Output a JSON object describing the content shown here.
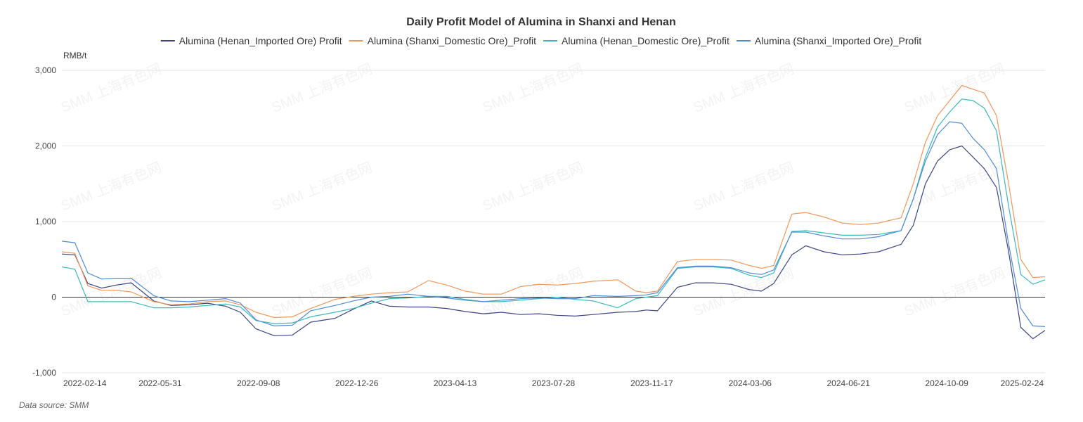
{
  "chart_data": {
    "type": "line",
    "title": "Daily Profit Model of Alumina in Shanxi and Henan",
    "ylabel": "RMB/t",
    "xlabel": "",
    "ylim": [
      -1000,
      3000
    ],
    "yticks": [
      -1000,
      0,
      1000,
      2000,
      3000
    ],
    "ytick_labels": [
      "-1,000",
      "0",
      "1,000",
      "2,000",
      "3,000"
    ],
    "x_tick_labels": [
      "2022-02-14",
      "2022-05-31",
      "2022-09-08",
      "2022-12-26",
      "2023-04-13",
      "2023-07-28",
      "2023-11-17",
      "2024-03-06",
      "2024-06-21",
      "2024-10-09",
      "2025-02-24"
    ],
    "grid": "horizontal",
    "legend_position": "top-center",
    "watermark": "SMM 上海有色网",
    "source": "Data source:  SMM",
    "x": [
      "2022-02-14",
      "2022-03-01",
      "2022-03-16",
      "2022-04-01",
      "2022-04-18",
      "2022-05-05",
      "2022-05-31",
      "2022-06-20",
      "2022-07-11",
      "2022-08-01",
      "2022-08-22",
      "2022-09-08",
      "2022-09-26",
      "2022-10-17",
      "2022-11-07",
      "2022-11-28",
      "2022-12-26",
      "2023-01-16",
      "2023-02-06",
      "2023-02-27",
      "2023-03-20",
      "2023-04-13",
      "2023-05-04",
      "2023-05-25",
      "2023-06-15",
      "2023-07-06",
      "2023-07-28",
      "2023-08-18",
      "2023-09-08",
      "2023-09-29",
      "2023-10-20",
      "2023-11-17",
      "2023-12-08",
      "2023-12-20",
      "2024-01-02",
      "2024-01-25",
      "2024-02-15",
      "2024-03-06",
      "2024-03-27",
      "2024-04-17",
      "2024-05-01",
      "2024-05-15",
      "2024-06-05",
      "2024-06-21",
      "2024-07-12",
      "2024-08-02",
      "2024-08-23",
      "2024-09-13",
      "2024-10-09",
      "2024-10-23",
      "2024-11-06",
      "2024-11-20",
      "2024-12-04",
      "2024-12-18",
      "2024-12-31",
      "2025-01-13",
      "2025-01-27",
      "2025-02-10",
      "2025-02-24",
      "2025-03-10",
      "2025-03-24"
    ],
    "series": [
      {
        "name": "Alumina (Henan_Imported Ore) Profit",
        "color": "#3d4585",
        "values": [
          570,
          560,
          180,
          120,
          160,
          190,
          -50,
          -110,
          -100,
          -80,
          -120,
          -200,
          -420,
          -510,
          -500,
          -330,
          -280,
          -160,
          -50,
          -120,
          -130,
          -130,
          -150,
          -190,
          -220,
          -200,
          -230,
          -220,
          -240,
          -250,
          -230,
          -200,
          -190,
          -170,
          -180,
          130,
          190,
          190,
          170,
          100,
          80,
          180,
          560,
          680,
          600,
          560,
          570,
          600,
          700,
          950,
          1500,
          1800,
          1950,
          2000,
          1850,
          1700,
          1450,
          600,
          -400,
          -550,
          -440
        ]
      },
      {
        "name": "Alumina (Shanxi_Domestic Ore)_Profit",
        "color": "#f0975a",
        "values": [
          600,
          580,
          150,
          90,
          90,
          70,
          -60,
          -100,
          -90,
          -60,
          -50,
          -100,
          -200,
          -270,
          -260,
          -150,
          -30,
          10,
          40,
          60,
          70,
          220,
          160,
          80,
          40,
          40,
          140,
          170,
          160,
          180,
          210,
          230,
          80,
          60,
          80,
          470,
          500,
          500,
          490,
          420,
          380,
          420,
          1100,
          1120,
          1060,
          980,
          960,
          980,
          1050,
          1500,
          2050,
          2400,
          2600,
          2800,
          2750,
          2700,
          2400,
          1500,
          500,
          260,
          270
        ]
      },
      {
        "name": "Alumina (Henan_Domestic Ore)_Profit",
        "color": "#3cb8bc",
        "values": [
          400,
          370,
          -60,
          -60,
          -60,
          -60,
          -140,
          -140,
          -130,
          -110,
          -90,
          -130,
          -310,
          -350,
          -340,
          -260,
          -200,
          -150,
          -80,
          -20,
          -10,
          10,
          10,
          -30,
          -60,
          -60,
          -40,
          -20,
          0,
          -30,
          -50,
          -140,
          -20,
          0,
          20,
          380,
          400,
          400,
          380,
          290,
          260,
          320,
          870,
          880,
          850,
          820,
          820,
          830,
          880,
          1300,
          1850,
          2250,
          2450,
          2620,
          2600,
          2500,
          2200,
          1200,
          300,
          170,
          230
        ]
      },
      {
        "name": "Alumina (Shanxi_Imported Ore)_Profit",
        "color": "#4f8bd6",
        "values": [
          740,
          720,
          320,
          240,
          250,
          250,
          20,
          -50,
          -60,
          -40,
          -20,
          -80,
          -300,
          -380,
          -370,
          -180,
          -110,
          -50,
          0,
          10,
          40,
          10,
          -10,
          -40,
          -60,
          -40,
          -20,
          -10,
          -20,
          -20,
          20,
          10,
          20,
          30,
          60,
          390,
          410,
          410,
          390,
          320,
          300,
          360,
          860,
          860,
          810,
          770,
          770,
          800,
          880,
          1300,
          1800,
          2150,
          2320,
          2300,
          2100,
          1950,
          1700,
          700,
          -150,
          -380,
          -390
        ]
      }
    ]
  }
}
